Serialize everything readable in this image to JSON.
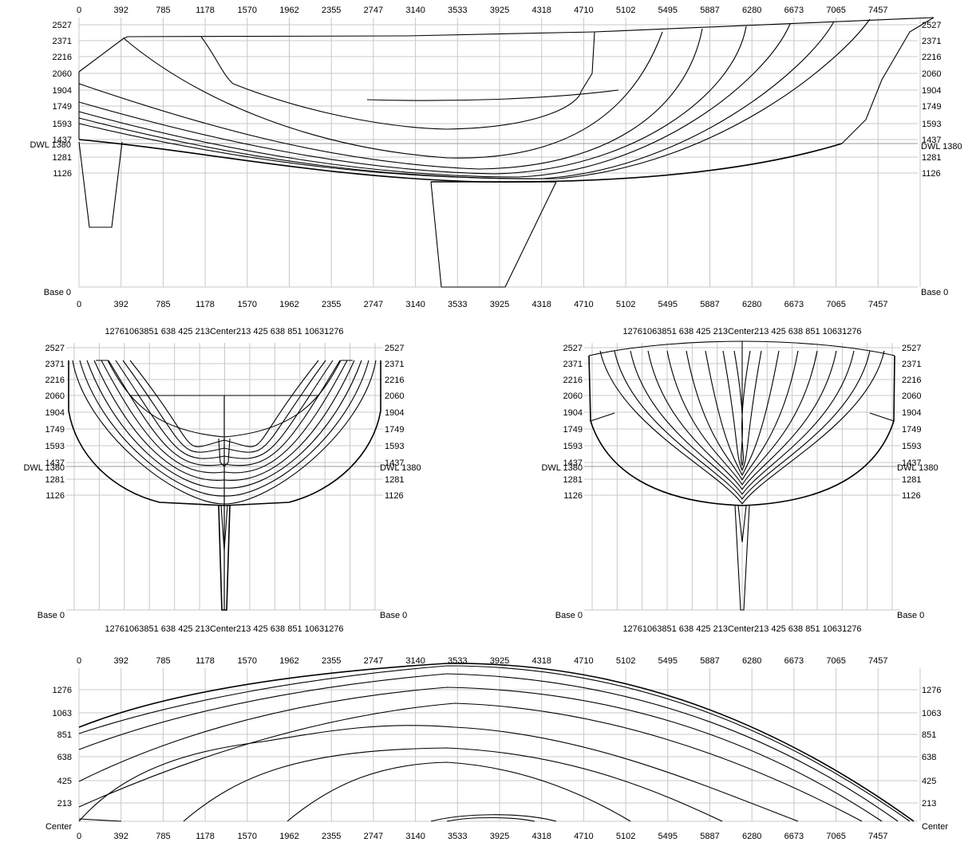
{
  "drawing": {
    "length_ticks": [
      "0",
      "392",
      "785",
      "1178",
      "1570",
      "1962",
      "2355",
      "2747",
      "3140",
      "3533",
      "3925",
      "4318",
      "4710",
      "5102",
      "5495",
      "5887",
      "6280",
      "6673",
      "7065",
      "7457"
    ],
    "height_ticks": [
      "2527",
      "2371",
      "2216",
      "2060",
      "1904",
      "1749",
      "1593",
      "1437",
      "1281",
      "1126"
    ],
    "base_label": "Base 0",
    "dwl_label": "DWL 1380",
    "half_breadth_ticks": [
      "1276",
      "1063",
      "851",
      "638",
      "425",
      "213"
    ],
    "breadth_ticks": [
      "1276",
      "1063",
      "851",
      "638",
      "425",
      "213",
      "Center",
      "213",
      "425",
      "638",
      "851",
      "1063",
      "1276"
    ],
    "section_top_label": "12761063851 638 425 213Center213 425 638 851 10631276",
    "center_label": "Center"
  },
  "views": {
    "profile": "profile-view",
    "body_aft": "body-plan-aft",
    "body_fwd": "body-plan-forward",
    "plan": "half-breadth-plan"
  }
}
